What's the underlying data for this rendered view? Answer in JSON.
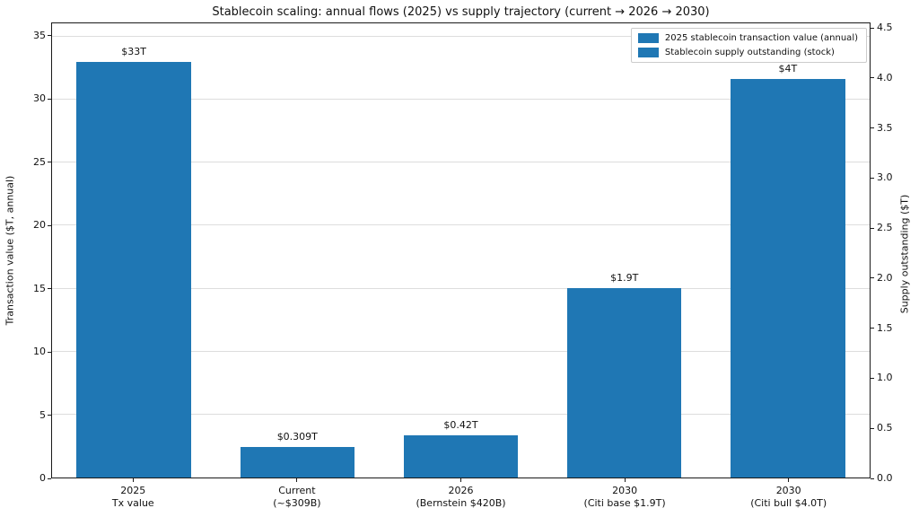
{
  "chart_data": {
    "type": "bar",
    "title": "Stablecoin scaling: annual flows (2025) vs supply trajectory (current → 2026 → 2030)",
    "bar_color": "#1f77b4",
    "grid": true,
    "legend_position": "upper right",
    "legend": [
      "2025 stablecoin transaction value (annual)",
      "Stablecoin supply outstanding (stock)"
    ],
    "left_axis": {
      "label": "Transaction value ($T, annual)",
      "ticks": [
        0,
        5,
        10,
        15,
        20,
        25,
        30,
        35
      ],
      "range": [
        0,
        36.06
      ]
    },
    "right_axis": {
      "label": "Supply outstanding ($T)",
      "ticks": [
        "0.0",
        "0.5",
        "1.0",
        "1.5",
        "2.0",
        "2.5",
        "3.0",
        "3.5",
        "4.0",
        "4.5"
      ],
      "range": [
        0,
        4.556
      ]
    },
    "categories": [
      "2025\nTx value",
      "Current\n(~$309B)",
      "2026\n(Bernstein $420B)",
      "2030\n(Citi base $1.9T)",
      "2030\n(Citi bull $4.0T)"
    ],
    "bars": [
      {
        "label_line1": "2025",
        "label_line2": "Tx value",
        "value": 33,
        "value_label": "$33T",
        "axis": "left",
        "series": "2025 stablecoin transaction value (annual)"
      },
      {
        "label_line1": "Current",
        "label_line2": "(~$309B)",
        "value": 0.309,
        "value_label": "$0.309T",
        "axis": "right",
        "series": "Stablecoin supply outstanding (stock)"
      },
      {
        "label_line1": "2026",
        "label_line2": "(Bernstein $420B)",
        "value": 0.42,
        "value_label": "$0.42T",
        "axis": "right",
        "series": "Stablecoin supply outstanding (stock)"
      },
      {
        "label_line1": "2030",
        "label_line2": "(Citi base $1.9T)",
        "value": 1.9,
        "value_label": "$1.9T",
        "axis": "right",
        "series": "Stablecoin supply outstanding (stock)"
      },
      {
        "label_line1": "2030",
        "label_line2": "(Citi bull $4.0T)",
        "value": 4.0,
        "value_label": "$4T",
        "axis": "right",
        "series": "Stablecoin supply outstanding (stock)"
      }
    ]
  }
}
